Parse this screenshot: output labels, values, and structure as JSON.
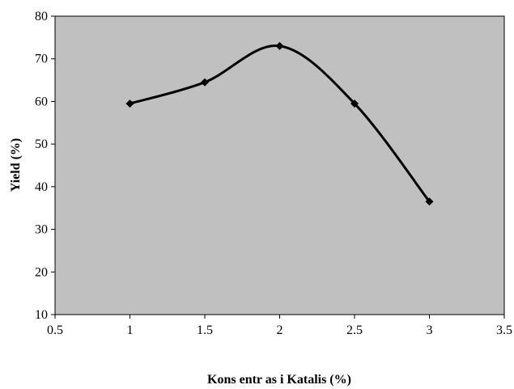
{
  "chart_data": {
    "type": "scatter",
    "xlabel": "Kons entr as i Katalis (%)",
    "ylabel": "Yield (%)",
    "xlim": [
      0.5,
      3.5
    ],
    "ylim": [
      10,
      80
    ],
    "xticks": [
      "0.5",
      "1",
      "1.5",
      "2",
      "2.5",
      "3",
      "3.5"
    ],
    "yticks": [
      "10",
      "20",
      "30",
      "40",
      "50",
      "60",
      "70",
      "80"
    ],
    "grid": false,
    "smooth_line": true,
    "series": [
      {
        "x": [
          1,
          1.5,
          2,
          2.5,
          3
        ],
        "y": [
          59.5,
          64.5,
          73,
          59.5,
          36.5
        ],
        "color": "#000000"
      }
    ],
    "plot_background": "#c0c0c0"
  }
}
